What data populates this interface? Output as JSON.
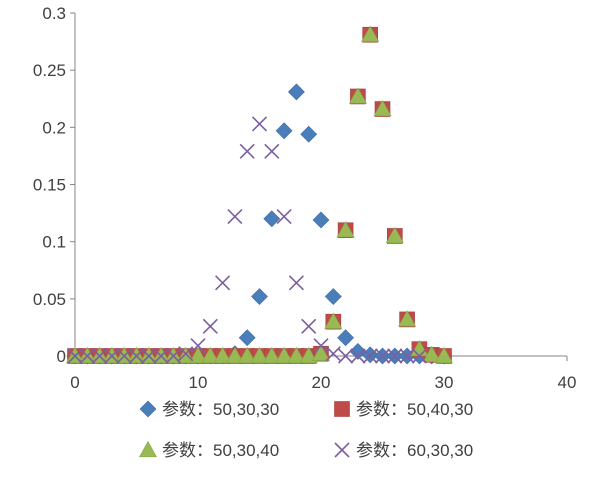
{
  "chart_data": {
    "type": "scatter",
    "title": "",
    "xlabel": "",
    "ylabel": "",
    "xlim": [
      0,
      40
    ],
    "ylim": [
      0,
      0.3
    ],
    "x_ticks": [
      0,
      10,
      20,
      30,
      40
    ],
    "y_ticks": [
      0,
      0.05,
      0.1,
      0.15,
      0.2,
      0.25,
      0.3
    ],
    "x_tick_labels": [
      "0",
      "10",
      "20",
      "30",
      "40"
    ],
    "y_tick_labels": [
      "0",
      "0.05",
      "0.1",
      "0.15",
      "0.2",
      "0.25",
      "0.3"
    ],
    "grid": false,
    "legend_position": "bottom",
    "series": [
      {
        "name": "参数：50,30,30",
        "marker": "diamond",
        "color": "#4a7ebb",
        "x": [
          0,
          1,
          2,
          3,
          4,
          5,
          6,
          7,
          8,
          9,
          10,
          11,
          12,
          13,
          14,
          15,
          16,
          17,
          18,
          19,
          20,
          21,
          22,
          23,
          24,
          25,
          26,
          27,
          28,
          29,
          30
        ],
        "y": [
          0,
          0,
          0,
          0,
          0,
          0,
          0,
          0,
          0,
          0,
          0,
          0,
          0,
          0.002,
          0.016,
          0.052,
          0.12,
          0.197,
          0.231,
          0.194,
          0.119,
          0.052,
          0.016,
          0.004,
          0.001,
          0,
          0,
          0,
          0,
          0,
          0
        ]
      },
      {
        "name": "参数：50,40,30",
        "marker": "square",
        "color": "#be4b48",
        "x": [
          0,
          1,
          2,
          3,
          4,
          5,
          6,
          7,
          8,
          9,
          10,
          11,
          12,
          13,
          14,
          15,
          16,
          17,
          18,
          19,
          20,
          21,
          22,
          23,
          24,
          25,
          26,
          27,
          28,
          29,
          30
        ],
        "y": [
          0,
          0,
          0,
          0,
          0,
          0,
          0,
          0,
          0,
          0,
          0,
          0,
          0,
          0,
          0,
          0,
          0,
          0,
          0,
          0,
          0.002,
          0.03,
          0.11,
          0.227,
          0.281,
          0.216,
          0.105,
          0.032,
          0.006,
          0.001,
          0
        ]
      },
      {
        "name": "参数：50,30,40",
        "marker": "triangle",
        "color": "#98b954",
        "x": [
          0,
          1,
          2,
          3,
          4,
          5,
          6,
          7,
          8,
          9,
          10,
          11,
          12,
          13,
          14,
          15,
          16,
          17,
          18,
          19,
          20,
          21,
          22,
          23,
          24,
          25,
          26,
          27,
          28,
          29,
          30
        ],
        "y": [
          0,
          0,
          0,
          0,
          0,
          0,
          0,
          0,
          0,
          0,
          0,
          0,
          0,
          0,
          0,
          0,
          0,
          0,
          0,
          0,
          0.002,
          0.03,
          0.11,
          0.227,
          0.281,
          0.216,
          0.105,
          0.032,
          0.006,
          0.001,
          0
        ]
      },
      {
        "name": "参数：60,30,30",
        "marker": "x",
        "color": "#7d5fa0",
        "x": [
          0,
          1,
          2,
          3,
          4,
          5,
          6,
          7,
          8,
          9,
          10,
          11,
          12,
          13,
          14,
          15,
          16,
          17,
          18,
          19,
          20,
          21,
          22,
          23,
          24,
          25,
          26,
          27,
          28
        ],
        "y": [
          0,
          0,
          0,
          0,
          0,
          0,
          0,
          0,
          0,
          0.002,
          0.009,
          0.026,
          0.064,
          0.122,
          0.179,
          0.203,
          0.179,
          0.122,
          0.064,
          0.026,
          0.009,
          0.002,
          0,
          0,
          0,
          0,
          0,
          0,
          0
        ]
      }
    ]
  }
}
